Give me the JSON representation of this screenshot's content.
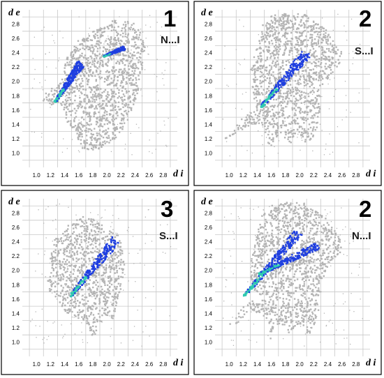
{
  "chart_data": [
    {
      "type": "scatter",
      "panel_number": "1",
      "contact_label": "N...I",
      "xlabel": "d i",
      "ylabel": "d e",
      "xlim": [
        0.8,
        3.0
      ],
      "ylim": [
        0.8,
        3.0
      ],
      "x_ticks": [
        "1.0",
        "1.2",
        "1.4",
        "1.6",
        "1.8",
        "2.0",
        "2.2",
        "2.4",
        "2.6",
        "2.8"
      ],
      "y_ticks": [
        "1.0",
        "1.2",
        "1.4",
        "1.6",
        "1.8",
        "2.0",
        "2.2",
        "2.4",
        "2.6",
        "2.8"
      ],
      "grid": true,
      "fingerprint_outline": [
        [
          1.35,
          2.02
        ],
        [
          1.42,
          2.35
        ],
        [
          1.5,
          2.5
        ],
        [
          1.62,
          2.62
        ],
        [
          1.75,
          2.7
        ],
        [
          1.92,
          2.76
        ],
        [
          2.05,
          2.85
        ],
        [
          2.22,
          2.88
        ],
        [
          2.38,
          2.82
        ],
        [
          2.48,
          2.68
        ],
        [
          2.53,
          2.48
        ],
        [
          2.5,
          2.22
        ],
        [
          2.45,
          1.95
        ],
        [
          2.38,
          1.7
        ],
        [
          2.3,
          1.48
        ],
        [
          2.2,
          1.3
        ],
        [
          2.05,
          1.16
        ],
        [
          1.9,
          1.08
        ],
        [
          1.78,
          1.02
        ],
        [
          1.65,
          1.06
        ],
        [
          1.58,
          1.2
        ],
        [
          1.55,
          1.33
        ],
        [
          1.45,
          1.38
        ],
        [
          1.4,
          1.52
        ],
        [
          1.33,
          1.72
        ],
        [
          1.2,
          1.68
        ],
        [
          1.08,
          1.72
        ],
        [
          1.12,
          1.85
        ],
        [
          1.22,
          1.92
        ]
      ],
      "highlighted_contacts": [
        {
          "from": [
            1.25,
            1.72
          ],
          "to": [
            1.62,
            2.26
          ],
          "width": 0.09
        },
        {
          "from": [
            1.94,
            2.36
          ],
          "to": [
            2.24,
            2.48
          ],
          "width": 0.05
        }
      ],
      "highlight_color": "#1f3fe0",
      "highlight_dense_color": "#2fc9b0",
      "background_points_color": "#b4b4b4"
    },
    {
      "type": "scatter",
      "panel_number": "2",
      "contact_label": "S...I",
      "xlabel": "d i",
      "ylabel": "d e",
      "xlim": [
        0.8,
        3.0
      ],
      "ylim": [
        0.8,
        3.0
      ],
      "x_ticks": [
        "1.0",
        "1.2",
        "1.4",
        "1.6",
        "1.8",
        "2.0",
        "2.2",
        "2.4",
        "2.6",
        "2.8"
      ],
      "y_ticks": [
        "1.0",
        "1.2",
        "1.4",
        "1.6",
        "1.8",
        "2.0",
        "2.2",
        "2.4",
        "2.6",
        "2.8"
      ],
      "grid": true,
      "fingerprint_outline": [
        [
          0.92,
          1.2
        ],
        [
          1.18,
          1.5
        ],
        [
          1.38,
          1.62
        ],
        [
          1.3,
          1.9
        ],
        [
          1.3,
          2.2
        ],
        [
          1.38,
          2.5
        ],
        [
          1.45,
          2.78
        ],
        [
          1.62,
          2.95
        ],
        [
          1.85,
          2.96
        ],
        [
          2.05,
          2.95
        ],
        [
          2.22,
          2.85
        ],
        [
          2.38,
          2.72
        ],
        [
          2.5,
          2.55
        ],
        [
          2.6,
          2.4
        ],
        [
          2.56,
          2.25
        ],
        [
          2.42,
          2.08
        ],
        [
          2.28,
          1.82
        ],
        [
          2.28,
          1.52
        ],
        [
          2.22,
          1.3
        ],
        [
          2.12,
          1.1
        ],
        [
          1.98,
          1.28
        ],
        [
          1.92,
          1.22
        ],
        [
          1.85,
          1.12
        ],
        [
          1.72,
          1.28
        ],
        [
          1.64,
          1.22
        ],
        [
          1.58,
          1.05
        ],
        [
          1.5,
          1.28
        ],
        [
          1.45,
          1.4
        ],
        [
          1.32,
          1.42
        ],
        [
          1.1,
          1.28
        ]
      ],
      "highlighted_contacts": [
        {
          "from": [
            1.44,
            1.65
          ],
          "to": [
            2.1,
            2.42
          ],
          "width": 0.12
        }
      ],
      "highlight_color": "#1f3fe0",
      "highlight_dense_color": "#2fc9b0",
      "background_points_color": "#b4b4b4"
    },
    {
      "type": "scatter",
      "panel_number": "3",
      "contact_label": "S...I",
      "xlabel": "d i",
      "ylabel": "d e",
      "xlim": [
        0.8,
        3.0
      ],
      "ylim": [
        0.8,
        3.0
      ],
      "x_ticks": [
        "1.0",
        "1.2",
        "1.4",
        "1.6",
        "1.8",
        "2.0",
        "2.2",
        "2.4",
        "2.6",
        "2.8"
      ],
      "y_ticks": [
        "1.0",
        "1.2",
        "1.4",
        "1.6",
        "1.8",
        "2.0",
        "2.2",
        "2.4",
        "2.6",
        "2.8"
      ],
      "grid": true,
      "fingerprint_outline": [
        [
          1.1,
          1.78
        ],
        [
          1.2,
          1.95
        ],
        [
          1.18,
          2.2
        ],
        [
          1.25,
          2.45
        ],
        [
          1.38,
          2.58
        ],
        [
          1.5,
          2.7
        ],
        [
          1.62,
          2.78
        ],
        [
          1.82,
          2.72
        ],
        [
          2.0,
          2.58
        ],
        [
          2.15,
          2.5
        ],
        [
          2.22,
          2.3
        ],
        [
          2.24,
          2.05
        ],
        [
          2.2,
          1.8
        ],
        [
          2.14,
          1.55
        ],
        [
          2.08,
          1.32
        ],
        [
          1.98,
          1.4
        ],
        [
          1.88,
          1.25
        ],
        [
          1.8,
          1.05
        ],
        [
          1.72,
          1.25
        ],
        [
          1.6,
          1.3
        ],
        [
          1.52,
          1.38
        ],
        [
          1.4,
          1.42
        ],
        [
          1.3,
          1.6
        ]
      ],
      "highlighted_contacts": [
        {
          "from": [
            1.47,
            1.65
          ],
          "to": [
            2.12,
            2.44
          ],
          "width": 0.11
        }
      ],
      "highlight_color": "#1f3fe0",
      "highlight_dense_color": "#2fc9b0",
      "background_points_color": "#b4b4b4"
    },
    {
      "type": "scatter",
      "panel_number": "2",
      "contact_label": "N...I",
      "xlabel": "d i",
      "ylabel": "d e",
      "xlim": [
        0.8,
        3.0
      ],
      "ylim": [
        0.8,
        3.0
      ],
      "x_ticks": [
        "1.0",
        "1.2",
        "1.4",
        "1.6",
        "1.8",
        "2.0",
        "2.2",
        "2.4",
        "2.6",
        "2.8"
      ],
      "y_ticks": [
        "1.0",
        "1.2",
        "1.4",
        "1.6",
        "1.8",
        "2.0",
        "2.2",
        "2.4",
        "2.6",
        "2.8"
      ],
      "grid": true,
      "fingerprint_outline": [
        [
          0.92,
          1.2
        ],
        [
          1.18,
          1.5
        ],
        [
          1.38,
          1.62
        ],
        [
          1.3,
          1.9
        ],
        [
          1.3,
          2.2
        ],
        [
          1.38,
          2.5
        ],
        [
          1.45,
          2.78
        ],
        [
          1.62,
          2.95
        ],
        [
          1.85,
          2.96
        ],
        [
          2.05,
          2.95
        ],
        [
          2.22,
          2.85
        ],
        [
          2.38,
          2.72
        ],
        [
          2.5,
          2.55
        ],
        [
          2.6,
          2.4
        ],
        [
          2.56,
          2.25
        ],
        [
          2.42,
          2.08
        ],
        [
          2.28,
          1.82
        ],
        [
          2.28,
          1.52
        ],
        [
          2.22,
          1.3
        ],
        [
          2.12,
          1.1
        ],
        [
          1.98,
          1.28
        ],
        [
          1.92,
          1.22
        ],
        [
          1.85,
          1.12
        ],
        [
          1.72,
          1.28
        ],
        [
          1.64,
          1.22
        ],
        [
          1.58,
          1.05
        ],
        [
          1.5,
          1.28
        ],
        [
          1.45,
          1.4
        ],
        [
          1.32,
          1.42
        ],
        [
          1.1,
          1.28
        ]
      ],
      "highlighted_contacts": [
        {
          "from": [
            1.2,
            1.65
          ],
          "to": [
            1.98,
            2.55
          ],
          "width": 0.1
        },
        {
          "from": [
            1.4,
            1.95
          ],
          "to": [
            2.25,
            2.36
          ],
          "width": 0.1
        }
      ],
      "highlight_color": "#1f3fe0",
      "highlight_dense_color": "#2fc9b0",
      "background_points_color": "#b4b4b4"
    }
  ]
}
